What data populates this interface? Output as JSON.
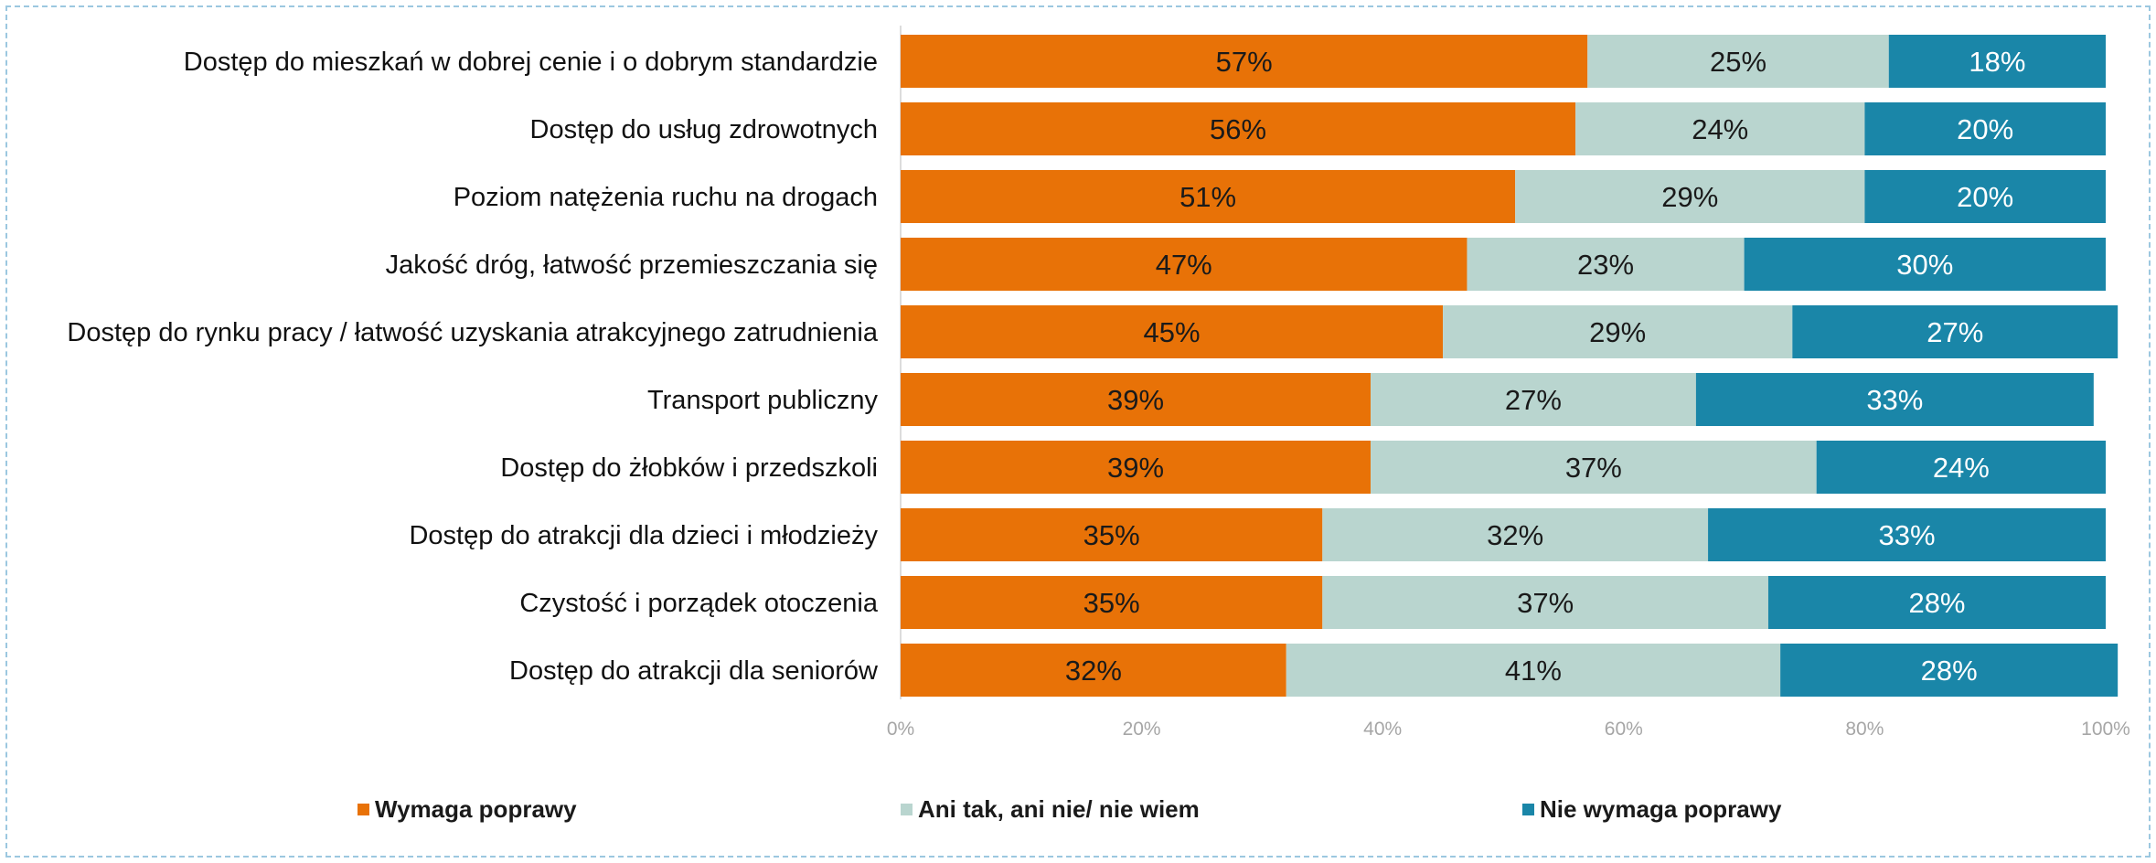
{
  "chart_data": {
    "type": "bar",
    "orientation": "horizontal",
    "stacked": true,
    "categories": [
      "Dostęp do mieszkań w dobrej cenie i o dobrym standardzie",
      "Dostęp do usług zdrowotnych",
      "Poziom natężenia ruchu na drogach",
      "Jakość dróg, łatwość przemieszczania się",
      "Dostęp do rynku pracy / łatwość uzyskania atrakcyjnego zatrudnienia",
      "Transport publiczny",
      "Dostęp do żłobków i przedszkoli",
      "Dostęp do atrakcji dla dzieci i młodzieży",
      "Czystość i porządek otoczenia",
      "Dostęp do atrakcji dla seniorów"
    ],
    "series": [
      {
        "name": "Wymaga poprawy",
        "color": "#E87207",
        "label_color": "#1a1a1a",
        "values": [
          57,
          56,
          51,
          47,
          45,
          39,
          39,
          35,
          35,
          32
        ]
      },
      {
        "name": "Ani tak, ani nie/ nie wiem",
        "color": "#B9D5CF",
        "label_color": "#1a1a1a",
        "values": [
          25,
          24,
          29,
          23,
          29,
          27,
          37,
          32,
          37,
          41
        ]
      },
      {
        "name": "Nie wymaga poprawy",
        "color": "#1A86A8",
        "label_color": "#ffffff",
        "values": [
          18,
          20,
          20,
          30,
          27,
          33,
          24,
          33,
          28,
          28
        ]
      }
    ],
    "x_ticks": [
      "0%",
      "20%",
      "40%",
      "60%",
      "80%",
      "100%"
    ],
    "xlim": [
      0,
      100
    ],
    "grid": false,
    "legend_position": "bottom"
  }
}
